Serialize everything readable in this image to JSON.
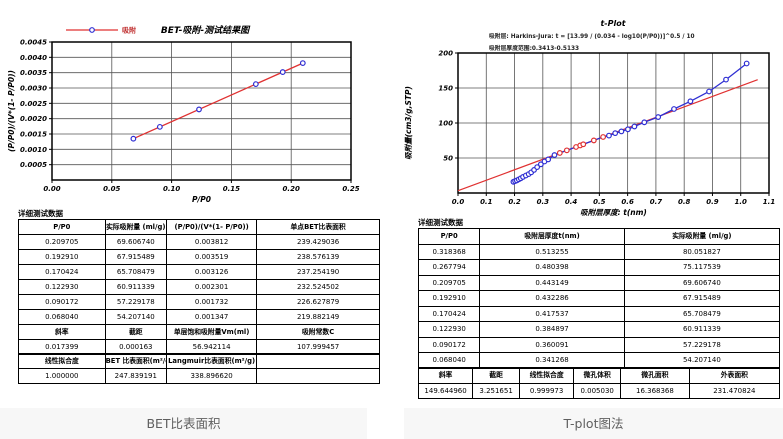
{
  "colors": {
    "series_red": "#e03131",
    "marker_blue": "#2f2fd3",
    "grid": "#555555",
    "frame": "#000000",
    "legend_text": "#c03030",
    "caption_bg": "#f7f7f7",
    "caption_text": "#5f5f5f",
    "table_border": "#000000"
  },
  "left_panel": {
    "section_label": "详细测试数据",
    "caption": "BET比表面积",
    "table": {
      "sections": [
        {
          "header": [
            "P/P0",
            "实际吸附量 (ml/g)",
            "(P/P0)/(V*(1- P/P0))",
            "单点BET比表面积"
          ],
          "rows": [
            [
              "0.209705",
              "69.606740",
              "0.003812",
              "239.429036"
            ],
            [
              "0.192910",
              "67.915489",
              "0.003519",
              "238.576139"
            ],
            [
              "0.170424",
              "65.708479",
              "0.003126",
              "237.254190"
            ],
            [
              "0.122930",
              "60.911339",
              "0.002301",
              "232.524502"
            ],
            [
              "0.090172",
              "57.229178",
              "0.001732",
              "226.627879"
            ],
            [
              "0.068040",
              "54.207140",
              "0.001347",
              "219.882149"
            ]
          ]
        },
        {
          "header": [
            "斜率",
            "截距",
            "单层饱和吸附量Vm(ml)",
            "吸附常数C"
          ],
          "rows": [
            [
              "0.017399",
              "0.000163",
              "56.942114",
              "107.999457"
            ]
          ]
        },
        {
          "header": [
            "线性拟合度",
            "BET 比表面积(m²/g)",
            "Langmuir比表面积(m²/g)",
            ""
          ],
          "rows": [
            [
              "1.000000",
              "247.839191",
              "338.896620",
              ""
            ]
          ]
        }
      ]
    }
  },
  "right_panel": {
    "section_label": "详细测试数据",
    "caption": "T-plot图法",
    "table": {
      "sections": [
        {
          "header": [
            "P/P0",
            "吸附层厚度t(nm)",
            "实际吸附量 (ml/g)"
          ],
          "rows": [
            [
              "0.318368",
              "0.513255",
              "80.051827"
            ],
            [
              "0.267794",
              "0.480398",
              "75.117539"
            ],
            [
              "0.209705",
              "0.443149",
              "69.606740"
            ],
            [
              "0.192910",
              "0.432286",
              "67.915489"
            ],
            [
              "0.170424",
              "0.417537",
              "65.708479"
            ],
            [
              "0.122930",
              "0.384897",
              "60.911339"
            ],
            [
              "0.090172",
              "0.360091",
              "57.229178"
            ],
            [
              "0.068040",
              "0.341268",
              "54.207140"
            ]
          ]
        },
        {
          "header": [
            "斜率",
            "截距",
            "线性拟合度",
            "微孔体积",
            "微孔面积",
            "外表面积"
          ],
          "rows": [
            [
              "149.644960",
              "3.251651",
              "0.999973",
              "0.005030",
              "16.368368",
              "231.470824"
            ]
          ]
        }
      ]
    }
  },
  "chart_data": [
    {
      "type": "scatter",
      "title": "BET-吸附-测试结果图",
      "legend": [
        {
          "label": "吸附"
        }
      ],
      "xlabel": "P/P0",
      "ylabel": "(P/P0)/(V*(1- P/P0))",
      "xlim": [
        0,
        0.25
      ],
      "ylim": [
        0,
        0.0045
      ],
      "xticks": [
        0,
        0.05,
        0.1,
        0.15,
        0.2,
        0.25
      ],
      "xtick_labels": [
        "0.00",
        "0.05",
        "0.10",
        "0.15",
        "0.20",
        "0.25"
      ],
      "yticks": [
        0.0005,
        0.001,
        0.0015,
        0.002,
        0.0025,
        0.003,
        0.0035,
        0.004,
        0.0045
      ],
      "ytick_labels": [
        "0.0005",
        "0.0010",
        "0.0015",
        "0.0020",
        "0.0025",
        "0.0030",
        "0.0035",
        "0.0040",
        "0.0045"
      ],
      "grid": true,
      "legend_position": "top-left",
      "points": [
        [
          0.06804,
          0.001347
        ],
        [
          0.090172,
          0.001732
        ],
        [
          0.12293,
          0.002301
        ],
        [
          0.170424,
          0.003126
        ],
        [
          0.19291,
          0.003519
        ],
        [
          0.209705,
          0.003812
        ]
      ],
      "fit_line": {
        "slope": 0.017399,
        "intercept": 0.000163,
        "x_start": 0.06804,
        "x_end": 0.209705
      }
    },
    {
      "type": "line",
      "title": "t-Plot",
      "subtitles": [
        "吸附层: Harkins-Jura: t = [13.99 / (0.034 - log10(P/P0))]^0.5 / 10",
        "吸附层厚度范围:0.3413-0.5133"
      ],
      "xlabel": "吸附层厚度: t(nm)",
      "ylabel": "吸附量(cm3/g,STP)",
      "xlim": [
        0,
        1.1
      ],
      "ylim": [
        0,
        200
      ],
      "xticks": [
        0,
        0.1,
        0.2,
        0.3,
        0.4,
        0.5,
        0.6,
        0.7,
        0.8,
        0.9,
        1.0,
        1.1
      ],
      "xtick_labels": [
        "0.0",
        "0.1",
        "0.2",
        "0.3",
        "0.4",
        "0.5",
        "0.6",
        "0.7",
        "0.8",
        "0.9",
        "1.0",
        "1.1"
      ],
      "yticks": [
        50,
        100,
        150,
        200
      ],
      "ytick_labels": [
        "50",
        "100",
        "150",
        "200"
      ],
      "grid": true,
      "curve": [
        [
          0.196,
          16.0
        ],
        [
          0.202,
          17.0
        ],
        [
          0.208,
          18.0
        ],
        [
          0.215,
          19.5
        ],
        [
          0.222,
          21.0
        ],
        [
          0.23,
          23.0
        ],
        [
          0.24,
          25.0
        ],
        [
          0.25,
          27.0
        ],
        [
          0.259,
          29.5
        ],
        [
          0.269,
          33.0
        ],
        [
          0.28,
          37.0
        ],
        [
          0.293,
          41.0
        ],
        [
          0.306,
          45.0
        ],
        [
          0.319,
          48.0
        ],
        [
          0.341268,
          54.20714
        ],
        [
          0.360091,
          57.229178
        ],
        [
          0.384897,
          60.911339
        ],
        [
          0.417537,
          65.708479
        ],
        [
          0.432286,
          67.915489
        ],
        [
          0.443149,
          69.60674
        ],
        [
          0.480398,
          75.117539
        ],
        [
          0.513255,
          80.051827
        ],
        [
          0.534,
          82.0
        ],
        [
          0.556,
          85.5
        ],
        [
          0.578,
          88.0
        ],
        [
          0.601,
          91.0
        ],
        [
          0.624,
          95.0
        ],
        [
          0.659,
          101.0
        ],
        [
          0.708,
          108.5
        ],
        [
          0.764,
          120.0
        ],
        [
          0.822,
          131.0
        ],
        [
          0.888,
          145.0
        ],
        [
          0.948,
          162.0
        ],
        [
          1.021,
          185.0
        ]
      ],
      "fit_range": [
        0.3413,
        0.5133
      ],
      "fit_line": {
        "slope": 149.64496,
        "intercept": 3.251651,
        "x_start": 0,
        "x_end": 1.06
      }
    }
  ]
}
